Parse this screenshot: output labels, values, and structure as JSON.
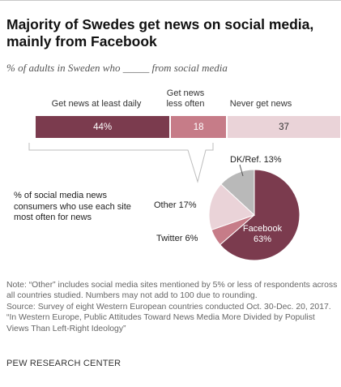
{
  "title": "Majority of Swedes get news on social media, mainly from Facebook",
  "subtitle": "% of adults in Sweden who _____ from social media",
  "chart_data": [
    {
      "type": "bar",
      "orientation": "horizontal-stacked",
      "categories": [
        "Get news at least daily",
        "Get news less often",
        "Never get news"
      ],
      "values": [
        44,
        18,
        37
      ],
      "value_labels": [
        "44%",
        "18",
        "37"
      ],
      "colors": [
        "#7b3b4e",
        "#c67c88",
        "#ead3d8"
      ]
    },
    {
      "type": "pie",
      "caption": "% of social media news consumers who use each site most often for news",
      "labels": [
        "Facebook",
        "Twitter",
        "Other",
        "DK/Ref."
      ],
      "values": [
        63,
        6,
        17,
        13
      ],
      "value_labels": [
        "Facebook 63%",
        "Twitter 6%",
        "Other 17%",
        "DK/Ref. 13%"
      ],
      "colors": [
        "#7b3b4e",
        "#c67c88",
        "#ead3d8",
        "#b9b9b9"
      ]
    }
  ],
  "notes": [
    "Note: “Other” includes social media sites mentioned by 5% or less of respondents across all countries studied. Numbers may not add to 100 due to rounding.",
    "Source: Survey of eight Western European countries conducted Oct. 30-Dec. 20, 2017.",
    "“In Western Europe, Public Attitudes Toward News Media More Divided by Populist Views Than Left-Right Ideology”"
  ],
  "source_org": "PEW RESEARCH CENTER"
}
